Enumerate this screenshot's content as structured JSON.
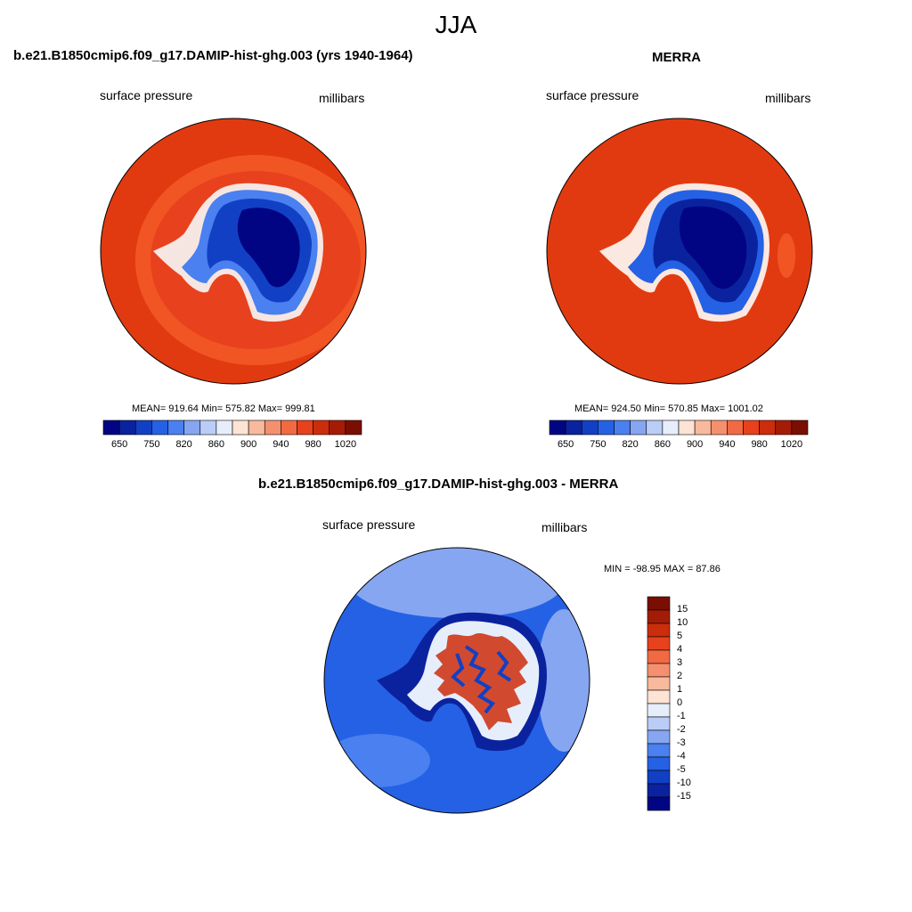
{
  "suptitle": "JJA",
  "panels": [
    {
      "title": "b.e21.B1850cmip6.f09_g17.DAMIP-hist-ghg.003 (yrs 1940-1964)",
      "left_label": "surface pressure",
      "right_label": "millibars",
      "stats": "MEAN= 919.64  Min= 575.82  Max= 999.81"
    },
    {
      "title": "MERRA",
      "left_label": "surface pressure",
      "right_label": "millibars",
      "stats": "MEAN= 924.50  Min= 570.85  Max= 1001.02"
    },
    {
      "title": "b.e21.B1850cmip6.f09_g17.DAMIP-hist-ghg.003 - MERRA",
      "left_label": "surface pressure",
      "right_label": "millibars",
      "stats": "MIN = -98.95 MAX =  87.86"
    }
  ],
  "colorbar_abs": {
    "colors": [
      "#020583",
      "#0b229f",
      "#1240c4",
      "#2561e5",
      "#4a80f0",
      "#86a6f2",
      "#b9cdf6",
      "#e6eefb",
      "#fde3d3",
      "#f9b99c",
      "#f5906f",
      "#f26a44",
      "#e8411d",
      "#cc2d0c",
      "#a51c06",
      "#7b0e02"
    ],
    "tick_labels": [
      "650",
      "750",
      "820",
      "860",
      "900",
      "940",
      "980",
      "1020"
    ]
  },
  "colorbar_diff": {
    "colors": [
      "#020583",
      "#0b229f",
      "#1240c4",
      "#2561e5",
      "#4a80f0",
      "#86a6f2",
      "#b9cdf6",
      "#e6eefb",
      "#fde3d3",
      "#f9b99c",
      "#f5906f",
      "#f26a44",
      "#e8411d",
      "#cc2d0c",
      "#a51c06",
      "#7b0e02"
    ],
    "tick_labels": [
      "15",
      "10",
      "5",
      "4",
      "3",
      "2",
      "1",
      "0",
      "-1",
      "-2",
      "-3",
      "-4",
      "-5",
      "-10",
      "-15"
    ]
  },
  "map_colors": {
    "ocean_abs": "#e23a10",
    "ring_abs": "#f25524",
    "ice_dark": "#020583",
    "ice_mid": "#1240c4",
    "ice_light": "#4a80f0",
    "diff_ocean": "#2561e5",
    "diff_light": "#86a6f2",
    "diff_pos": "#cc2d0c"
  }
}
